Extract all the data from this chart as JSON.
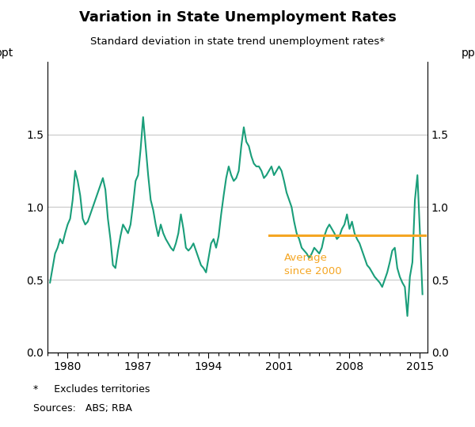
{
  "title": "Variation in State Unemployment Rates",
  "subtitle": "Standard deviation in state trend unemployment rates*",
  "ylabel": "ppt",
  "ylabel_right": "ppt",
  "footnote1": "*     Excludes territories",
  "footnote2": "Sources:   ABS; RBA",
  "line_color": "#1a9e7a",
  "avg_color": "#f5a623",
  "avg_label": "Average\nsince 2000",
  "avg_value": 0.805,
  "avg_start": 2000.0,
  "avg_end": 2015.5,
  "xlim": [
    1978.0,
    2015.75
  ],
  "ylim": [
    0.0,
    2.0
  ],
  "yticks": [
    0.0,
    0.5,
    1.0,
    1.5
  ],
  "xticks": [
    1980,
    1987,
    1994,
    2001,
    2008,
    2015
  ],
  "background_color": "#ffffff",
  "data": [
    [
      1978.25,
      0.48
    ],
    [
      1978.5,
      0.58
    ],
    [
      1978.75,
      0.68
    ],
    [
      1979.0,
      0.72
    ],
    [
      1979.25,
      0.78
    ],
    [
      1979.5,
      0.75
    ],
    [
      1979.75,
      0.82
    ],
    [
      1980.0,
      0.88
    ],
    [
      1980.25,
      0.92
    ],
    [
      1980.5,
      1.05
    ],
    [
      1980.75,
      1.25
    ],
    [
      1981.0,
      1.18
    ],
    [
      1981.25,
      1.08
    ],
    [
      1981.5,
      0.92
    ],
    [
      1981.75,
      0.88
    ],
    [
      1982.0,
      0.9
    ],
    [
      1982.25,
      0.95
    ],
    [
      1982.5,
      1.0
    ],
    [
      1982.75,
      1.05
    ],
    [
      1983.0,
      1.1
    ],
    [
      1983.25,
      1.15
    ],
    [
      1983.5,
      1.2
    ],
    [
      1983.75,
      1.12
    ],
    [
      1984.0,
      0.92
    ],
    [
      1984.25,
      0.78
    ],
    [
      1984.5,
      0.6
    ],
    [
      1984.75,
      0.58
    ],
    [
      1985.0,
      0.7
    ],
    [
      1985.25,
      0.8
    ],
    [
      1985.5,
      0.88
    ],
    [
      1985.75,
      0.85
    ],
    [
      1986.0,
      0.82
    ],
    [
      1986.25,
      0.88
    ],
    [
      1986.5,
      1.02
    ],
    [
      1986.75,
      1.18
    ],
    [
      1987.0,
      1.22
    ],
    [
      1987.25,
      1.4
    ],
    [
      1987.5,
      1.62
    ],
    [
      1987.75,
      1.42
    ],
    [
      1988.0,
      1.22
    ],
    [
      1988.25,
      1.05
    ],
    [
      1988.5,
      0.98
    ],
    [
      1988.75,
      0.88
    ],
    [
      1989.0,
      0.8
    ],
    [
      1989.25,
      0.88
    ],
    [
      1989.5,
      0.82
    ],
    [
      1989.75,
      0.78
    ],
    [
      1990.0,
      0.75
    ],
    [
      1990.25,
      0.72
    ],
    [
      1990.5,
      0.7
    ],
    [
      1990.75,
      0.75
    ],
    [
      1991.0,
      0.82
    ],
    [
      1991.25,
      0.95
    ],
    [
      1991.5,
      0.85
    ],
    [
      1991.75,
      0.72
    ],
    [
      1992.0,
      0.7
    ],
    [
      1992.25,
      0.72
    ],
    [
      1992.5,
      0.75
    ],
    [
      1992.75,
      0.7
    ],
    [
      1993.0,
      0.65
    ],
    [
      1993.25,
      0.6
    ],
    [
      1993.5,
      0.58
    ],
    [
      1993.75,
      0.55
    ],
    [
      1994.0,
      0.65
    ],
    [
      1994.25,
      0.75
    ],
    [
      1994.5,
      0.78
    ],
    [
      1994.75,
      0.72
    ],
    [
      1995.0,
      0.8
    ],
    [
      1995.25,
      0.95
    ],
    [
      1995.5,
      1.08
    ],
    [
      1995.75,
      1.2
    ],
    [
      1996.0,
      1.28
    ],
    [
      1996.25,
      1.22
    ],
    [
      1996.5,
      1.18
    ],
    [
      1996.75,
      1.2
    ],
    [
      1997.0,
      1.25
    ],
    [
      1997.25,
      1.42
    ],
    [
      1997.5,
      1.55
    ],
    [
      1997.75,
      1.45
    ],
    [
      1998.0,
      1.42
    ],
    [
      1998.25,
      1.35
    ],
    [
      1998.5,
      1.3
    ],
    [
      1998.75,
      1.28
    ],
    [
      1999.0,
      1.28
    ],
    [
      1999.25,
      1.25
    ],
    [
      1999.5,
      1.2
    ],
    [
      1999.75,
      1.22
    ],
    [
      2000.0,
      1.25
    ],
    [
      2000.25,
      1.28
    ],
    [
      2000.5,
      1.22
    ],
    [
      2000.75,
      1.25
    ],
    [
      2001.0,
      1.28
    ],
    [
      2001.25,
      1.25
    ],
    [
      2001.5,
      1.18
    ],
    [
      2001.75,
      1.1
    ],
    [
      2002.0,
      1.05
    ],
    [
      2002.25,
      1.0
    ],
    [
      2002.5,
      0.9
    ],
    [
      2002.75,
      0.82
    ],
    [
      2003.0,
      0.78
    ],
    [
      2003.25,
      0.72
    ],
    [
      2003.5,
      0.7
    ],
    [
      2003.75,
      0.68
    ],
    [
      2004.0,
      0.65
    ],
    [
      2004.25,
      0.68
    ],
    [
      2004.5,
      0.72
    ],
    [
      2004.75,
      0.7
    ],
    [
      2005.0,
      0.68
    ],
    [
      2005.25,
      0.72
    ],
    [
      2005.5,
      0.8
    ],
    [
      2005.75,
      0.85
    ],
    [
      2006.0,
      0.88
    ],
    [
      2006.25,
      0.85
    ],
    [
      2006.5,
      0.82
    ],
    [
      2006.75,
      0.78
    ],
    [
      2007.0,
      0.8
    ],
    [
      2007.25,
      0.85
    ],
    [
      2007.5,
      0.88
    ],
    [
      2007.75,
      0.95
    ],
    [
      2008.0,
      0.85
    ],
    [
      2008.25,
      0.9
    ],
    [
      2008.5,
      0.82
    ],
    [
      2008.75,
      0.78
    ],
    [
      2009.0,
      0.75
    ],
    [
      2009.25,
      0.7
    ],
    [
      2009.5,
      0.65
    ],
    [
      2009.75,
      0.6
    ],
    [
      2010.0,
      0.58
    ],
    [
      2010.25,
      0.55
    ],
    [
      2010.5,
      0.52
    ],
    [
      2010.75,
      0.5
    ],
    [
      2011.0,
      0.48
    ],
    [
      2011.25,
      0.45
    ],
    [
      2011.5,
      0.5
    ],
    [
      2011.75,
      0.55
    ],
    [
      2012.0,
      0.62
    ],
    [
      2012.25,
      0.7
    ],
    [
      2012.5,
      0.72
    ],
    [
      2012.75,
      0.58
    ],
    [
      2013.0,
      0.52
    ],
    [
      2013.25,
      0.48
    ],
    [
      2013.5,
      0.45
    ],
    [
      2013.75,
      0.25
    ],
    [
      2014.0,
      0.52
    ],
    [
      2014.25,
      0.62
    ],
    [
      2014.5,
      1.05
    ],
    [
      2014.75,
      1.22
    ],
    [
      2015.0,
      0.82
    ],
    [
      2015.25,
      0.4
    ]
  ]
}
